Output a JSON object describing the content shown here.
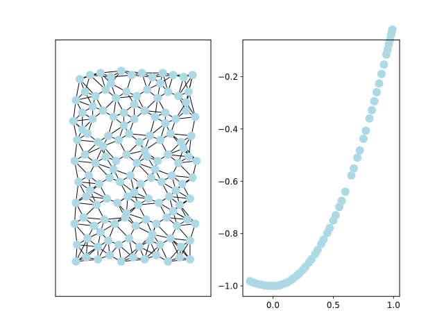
{
  "chart_data": [
    {
      "type": "scatter",
      "subtype": "triangulation-mesh",
      "xticks": [],
      "yticks": [],
      "marker_color": "#add8e6",
      "edge_color": "#000000",
      "grid": false,
      "legend": "none",
      "xlim": [
        0,
        1
      ],
      "ylim": [
        0,
        1
      ],
      "approx_point_count": 200,
      "points": [
        [
          0.08,
          0.92
        ],
        [
          0.16,
          0.94
        ],
        [
          0.24,
          0.95
        ],
        [
          0.32,
          0.93
        ],
        [
          0.4,
          0.96
        ],
        [
          0.48,
          0.94
        ],
        [
          0.56,
          0.95
        ],
        [
          0.64,
          0.93
        ],
        [
          0.72,
          0.95
        ],
        [
          0.8,
          0.94
        ],
        [
          0.88,
          0.93
        ],
        [
          0.95,
          0.94
        ],
        [
          0.05,
          0.82
        ],
        [
          0.12,
          0.86
        ],
        [
          0.2,
          0.84
        ],
        [
          0.28,
          0.87
        ],
        [
          0.36,
          0.83
        ],
        [
          0.44,
          0.86
        ],
        [
          0.52,
          0.84
        ],
        [
          0.6,
          0.87
        ],
        [
          0.68,
          0.83
        ],
        [
          0.76,
          0.86
        ],
        [
          0.84,
          0.84
        ],
        [
          0.92,
          0.86
        ],
        [
          0.03,
          0.72
        ],
        [
          0.1,
          0.76
        ],
        [
          0.18,
          0.73
        ],
        [
          0.26,
          0.77
        ],
        [
          0.34,
          0.74
        ],
        [
          0.42,
          0.76
        ],
        [
          0.5,
          0.73
        ],
        [
          0.58,
          0.77
        ],
        [
          0.66,
          0.74
        ],
        [
          0.74,
          0.76
        ],
        [
          0.82,
          0.73
        ],
        [
          0.9,
          0.77
        ],
        [
          0.97,
          0.74
        ],
        [
          0.06,
          0.63
        ],
        [
          0.14,
          0.66
        ],
        [
          0.22,
          0.62
        ],
        [
          0.3,
          0.65
        ],
        [
          0.38,
          0.63
        ],
        [
          0.46,
          0.66
        ],
        [
          0.54,
          0.62
        ],
        [
          0.62,
          0.65
        ],
        [
          0.7,
          0.63
        ],
        [
          0.78,
          0.66
        ],
        [
          0.86,
          0.62
        ],
        [
          0.94,
          0.65
        ],
        [
          0.04,
          0.53
        ],
        [
          0.12,
          0.56
        ],
        [
          0.2,
          0.52
        ],
        [
          0.28,
          0.55
        ],
        [
          0.36,
          0.53
        ],
        [
          0.44,
          0.56
        ],
        [
          0.52,
          0.52
        ],
        [
          0.6,
          0.55
        ],
        [
          0.68,
          0.53
        ],
        [
          0.76,
          0.56
        ],
        [
          0.84,
          0.52
        ],
        [
          0.92,
          0.55
        ],
        [
          0.98,
          0.53
        ],
        [
          0.07,
          0.43
        ],
        [
          0.15,
          0.46
        ],
        [
          0.23,
          0.42
        ],
        [
          0.31,
          0.45
        ],
        [
          0.39,
          0.43
        ],
        [
          0.47,
          0.46
        ],
        [
          0.55,
          0.42
        ],
        [
          0.63,
          0.45
        ],
        [
          0.71,
          0.43
        ],
        [
          0.79,
          0.46
        ],
        [
          0.87,
          0.42
        ],
        [
          0.95,
          0.45
        ],
        [
          0.05,
          0.33
        ],
        [
          0.13,
          0.36
        ],
        [
          0.21,
          0.32
        ],
        [
          0.29,
          0.35
        ],
        [
          0.37,
          0.33
        ],
        [
          0.45,
          0.36
        ],
        [
          0.53,
          0.32
        ],
        [
          0.61,
          0.35
        ],
        [
          0.69,
          0.33
        ],
        [
          0.77,
          0.36
        ],
        [
          0.85,
          0.32
        ],
        [
          0.93,
          0.35
        ],
        [
          0.04,
          0.23
        ],
        [
          0.11,
          0.26
        ],
        [
          0.19,
          0.22
        ],
        [
          0.27,
          0.25
        ],
        [
          0.35,
          0.23
        ],
        [
          0.43,
          0.26
        ],
        [
          0.51,
          0.22
        ],
        [
          0.59,
          0.25
        ],
        [
          0.67,
          0.23
        ],
        [
          0.75,
          0.26
        ],
        [
          0.83,
          0.22
        ],
        [
          0.91,
          0.25
        ],
        [
          0.97,
          0.23
        ],
        [
          0.06,
          0.13
        ],
        [
          0.14,
          0.16
        ],
        [
          0.22,
          0.12
        ],
        [
          0.3,
          0.15
        ],
        [
          0.38,
          0.13
        ],
        [
          0.46,
          0.16
        ],
        [
          0.54,
          0.12
        ],
        [
          0.62,
          0.15
        ],
        [
          0.7,
          0.13
        ],
        [
          0.78,
          0.16
        ],
        [
          0.86,
          0.12
        ],
        [
          0.93,
          0.15
        ],
        [
          0.05,
          0.05
        ],
        [
          0.13,
          0.07
        ],
        [
          0.22,
          0.06
        ],
        [
          0.31,
          0.08
        ],
        [
          0.4,
          0.05
        ],
        [
          0.49,
          0.07
        ],
        [
          0.58,
          0.06
        ],
        [
          0.67,
          0.08
        ],
        [
          0.76,
          0.05
        ],
        [
          0.85,
          0.07
        ],
        [
          0.93,
          0.06
        ],
        [
          0.1,
          0.68
        ],
        [
          0.26,
          0.6
        ],
        [
          0.42,
          0.7
        ],
        [
          0.58,
          0.58
        ],
        [
          0.74,
          0.71
        ],
        [
          0.88,
          0.59
        ],
        [
          0.16,
          0.39
        ],
        [
          0.34,
          0.49
        ],
        [
          0.5,
          0.38
        ],
        [
          0.66,
          0.49
        ],
        [
          0.82,
          0.39
        ],
        [
          0.24,
          0.19
        ],
        [
          0.44,
          0.28
        ],
        [
          0.64,
          0.18
        ],
        [
          0.8,
          0.29
        ],
        [
          0.18,
          0.79
        ],
        [
          0.5,
          0.8
        ],
        [
          0.7,
          0.9
        ],
        [
          0.32,
          0.9
        ],
        [
          0.9,
          0.81
        ]
      ]
    },
    {
      "type": "scatter",
      "marker_color": "#add8e6",
      "grid": false,
      "legend": "none",
      "xlim": [
        -0.25,
        1.05
      ],
      "ylim": [
        -1.04,
        -0.06
      ],
      "xticks": [
        "0.0",
        "0.5",
        "1.0"
      ],
      "yticks": [
        "−0.2",
        "−0.4",
        "−0.6",
        "−0.8",
        "−1.0"
      ],
      "x": [
        -0.19,
        -0.17,
        -0.15,
        -0.12,
        -0.1,
        -0.07,
        -0.05,
        -0.02,
        0.0,
        0.02,
        0.05,
        0.07,
        0.1,
        0.12,
        0.15,
        0.17,
        0.2,
        0.22,
        0.25,
        0.27,
        0.3,
        0.32,
        0.35,
        0.37,
        0.4,
        0.42,
        0.45,
        0.47,
        0.5,
        0.52,
        0.55,
        0.57,
        0.6,
        0.65,
        0.67,
        0.7,
        0.72,
        0.75,
        0.77,
        0.8,
        0.82,
        0.84,
        0.86,
        0.88,
        0.9,
        0.92,
        0.94,
        0.95,
        0.96,
        0.97,
        0.98,
        0.985,
        0.99
      ],
      "y": [
        -0.982,
        -0.986,
        -0.989,
        -0.993,
        -0.995,
        -0.998,
        -0.999,
        -1.0,
        -1.0,
        -1.0,
        -0.998,
        -0.995,
        -0.99,
        -0.986,
        -0.978,
        -0.971,
        -0.96,
        -0.952,
        -0.938,
        -0.927,
        -0.91,
        -0.898,
        -0.878,
        -0.863,
        -0.84,
        -0.823,
        -0.798,
        -0.779,
        -0.75,
        -0.73,
        -0.698,
        -0.675,
        -0.64,
        -0.578,
        -0.551,
        -0.51,
        -0.482,
        -0.438,
        -0.407,
        -0.36,
        -0.328,
        -0.294,
        -0.26,
        -0.226,
        -0.19,
        -0.154,
        -0.116,
        -0.098,
        -0.078,
        -0.06,
        -0.04,
        -0.03,
        -0.02
      ]
    }
  ]
}
